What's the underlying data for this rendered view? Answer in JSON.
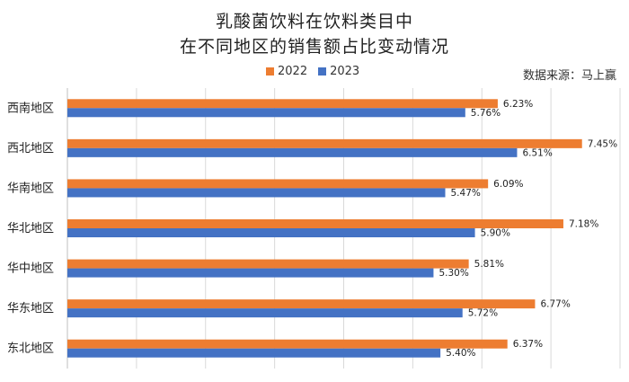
{
  "chart_data": {
    "type": "bar",
    "orientation": "horizontal",
    "title_lines": [
      "乳酸菌饮料在饮料类目中",
      "在不同地区的销售额占比变动情况"
    ],
    "source": "数据来源：马上赢",
    "categories": [
      "西南地区",
      "西北地区",
      "华南地区",
      "华北地区",
      "华中地区",
      "华东地区",
      "东北地区"
    ],
    "series": [
      {
        "name": "2022",
        "color": "#ED7D31",
        "values": [
          6.23,
          7.45,
          6.09,
          7.18,
          5.81,
          6.77,
          6.37
        ]
      },
      {
        "name": "2023",
        "color": "#4472C4",
        "values": [
          5.76,
          6.51,
          5.47,
          5.9,
          5.3,
          5.72,
          5.4
        ]
      }
    ],
    "value_suffix": "%",
    "xlim": [
      0,
      8
    ],
    "grid": true,
    "legend_position": "top"
  }
}
